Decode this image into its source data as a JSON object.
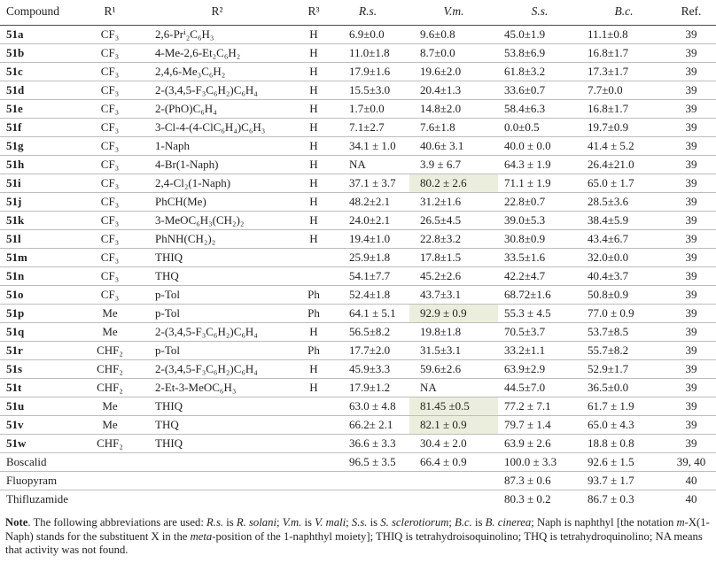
{
  "table": {
    "highlight_color": "#ebeedd",
    "columns": [
      {
        "key": "compound",
        "label": "Compound",
        "align": "left",
        "italic": false
      },
      {
        "key": "r1",
        "label": "R¹",
        "align": "center",
        "italic": false
      },
      {
        "key": "r2",
        "label": "R²",
        "align": "center",
        "italic": false
      },
      {
        "key": "r3",
        "label": "R³",
        "align": "center",
        "italic": false
      },
      {
        "key": "rs",
        "label": "R.s.",
        "align": "center",
        "italic": true
      },
      {
        "key": "vm",
        "label": "V.m.",
        "align": "center",
        "italic": true
      },
      {
        "key": "ss",
        "label": "S.s.",
        "align": "center",
        "italic": true
      },
      {
        "key": "bc",
        "label": "B.c.",
        "align": "center",
        "italic": true
      },
      {
        "key": "ref",
        "label": "Ref.",
        "align": "center",
        "italic": false
      }
    ],
    "rows": [
      {
        "bold": true,
        "highlight": [],
        "cells": {
          "compound": "51a",
          "r1": "CF₃",
          "r2": "2,6-Prⁱ₂C₆H₃",
          "r3": "H",
          "rs": "6.9±0.0",
          "vm": "9.6±0.8",
          "ss": "45.0±1.9",
          "bc": "11.1±0.8",
          "ref": "39"
        }
      },
      {
        "bold": true,
        "highlight": [],
        "cells": {
          "compound": "51b",
          "r1": "CF₃",
          "r2": "4-Me-2,6-Et₂C₆H₂",
          "r3": "H",
          "rs": "11.0±1.8",
          "vm": "8.7±0.0",
          "ss": "53.8±6.9",
          "bc": "16.8±1.7",
          "ref": "39"
        }
      },
      {
        "bold": true,
        "highlight": [],
        "cells": {
          "compound": "51c",
          "r1": "CF₃",
          "r2": "2,4,6-Me₃C₆H₂",
          "r3": "H",
          "rs": "17.9±1.6",
          "vm": "19.6±2.0",
          "ss": "61.8±3.2",
          "bc": "17.3±1.7",
          "ref": "39"
        }
      },
      {
        "bold": true,
        "highlight": [],
        "cells": {
          "compound": "51d",
          "r1": "CF₃",
          "r2": "2-(3,4,5-F₃C₆H₂)C₆H₄",
          "r3": "H",
          "rs": "15.5±3.0",
          "vm": "20.4±1.3",
          "ss": "33.6±0.7",
          "bc": "7.7±0.0",
          "ref": "39"
        }
      },
      {
        "bold": true,
        "highlight": [],
        "cells": {
          "compound": "51e",
          "r1": "CF₃",
          "r2": "2-(PhO)C₆H₄",
          "r3": "H",
          "rs": "1.7±0.0",
          "vm": "14.8±2.0",
          "ss": "58.4±6.3",
          "bc": "16.8±1.7",
          "ref": "39"
        }
      },
      {
        "bold": true,
        "highlight": [],
        "cells": {
          "compound": "51f",
          "r1": "CF₃",
          "r2": "3-Cl-4-(4-ClC₆H₄)C₆H₃",
          "r3": "H",
          "rs": "7.1±2.7",
          "vm": "7.6±1.8",
          "ss": "0.0±0.5",
          "bc": "19.7±0.9",
          "ref": "39"
        }
      },
      {
        "bold": true,
        "highlight": [],
        "cells": {
          "compound": "51g",
          "r1": "CF₃",
          "r2": "1-Naph",
          "r3": "H",
          "rs": "34.1 ± 1.0",
          "vm": "40.6± 3.1",
          "ss": "40.0 ± 0.0",
          "bc": "41.4 ± 5.2",
          "ref": "39"
        }
      },
      {
        "bold": true,
        "highlight": [],
        "cells": {
          "compound": "51h",
          "r1": "CF₃",
          "r2": "4-Br(1-Naph)",
          "r3": "H",
          "rs": "NA",
          "vm": "3.9 ± 6.7",
          "ss": "64.3 ± 1.9",
          "bc": "26.4±21.0",
          "ref": "39"
        }
      },
      {
        "bold": true,
        "highlight": [
          "vm"
        ],
        "cells": {
          "compound": "51i",
          "r1": "CF₃",
          "r2": "2,4-Cl₂(1-Naph)",
          "r3": "H",
          "rs": "37.1 ± 3.7",
          "vm": "80.2 ± 2.6",
          "ss": "71.1 ± 1.9",
          "bc": "65.0 ± 1.7",
          "ref": "39"
        }
      },
      {
        "bold": true,
        "highlight": [],
        "cells": {
          "compound": "51j",
          "r1": "CF₃",
          "r2": "PhCH(Me)",
          "r3": "H",
          "rs": "48.2±2.1",
          "vm": "31.2±1.6",
          "ss": "22.8±0.7",
          "bc": "28.5±3.6",
          "ref": "39"
        }
      },
      {
        "bold": true,
        "highlight": [],
        "cells": {
          "compound": "51k",
          "r1": "CF₃",
          "r2": "3-MeOC₆H₃(CH₂)₂",
          "r3": "H",
          "rs": "24.0±2.1",
          "vm": "26.5±4.5",
          "ss": "39.0±5.3",
          "bc": "38.4±5.9",
          "ref": "39"
        }
      },
      {
        "bold": true,
        "highlight": [],
        "cells": {
          "compound": "51l",
          "r1": "CF₃",
          "r2": "PhNH(CH₂)₂",
          "r3": "H",
          "rs": "19.4±1.0",
          "vm": "22.8±3.2",
          "ss": "30.8±0.9",
          "bc": "43.4±6.7",
          "ref": "39"
        }
      },
      {
        "bold": true,
        "highlight": [],
        "cells": {
          "compound": "51m",
          "r1": "CF₃",
          "r2": "THIQ",
          "r3": "",
          "rs": "25.9±1.8",
          "vm": "17.8±1.5",
          "ss": "33.5±1.6",
          "bc": "32.0±0.0",
          "ref": "39"
        }
      },
      {
        "bold": true,
        "highlight": [],
        "cells": {
          "compound": "51n",
          "r1": "CF₃",
          "r2": "THQ",
          "r3": "",
          "rs": "54.1±7.7",
          "vm": "45.2±2.6",
          "ss": "42.2±4.7",
          "bc": "40.4±3.7",
          "ref": "39"
        }
      },
      {
        "bold": true,
        "highlight": [],
        "cells": {
          "compound": "51o",
          "r1": "CF₃",
          "r2": "p-Tol",
          "r3": "Ph",
          "rs": "52.4±1.8",
          "vm": "43.7±3.1",
          "ss": "68.72±1.6",
          "bc": "50.8±0.9",
          "ref": "39"
        }
      },
      {
        "bold": true,
        "highlight": [
          "vm"
        ],
        "cells": {
          "compound": "51p",
          "r1": "Me",
          "r2": "p-Tol",
          "r3": "Ph",
          "rs": "64.1 ± 5.1",
          "vm": "92.9 ± 0.9",
          "ss": "55.3 ± 4.5",
          "bc": "77.0 ± 0.9",
          "ref": "39"
        }
      },
      {
        "bold": true,
        "highlight": [],
        "cells": {
          "compound": "51q",
          "r1": "Me",
          "r2": "2-(3,4,5-F₃C₆H₂)C₆H₄",
          "r3": "H",
          "rs": "56.5±8.2",
          "vm": "19.8±1.8",
          "ss": "70.5±3.7",
          "bc": "53.7±8.5",
          "ref": "39"
        }
      },
      {
        "bold": true,
        "highlight": [],
        "cells": {
          "compound": "51r",
          "r1": "CHF₂",
          "r2": "p-Tol",
          "r3": "Ph",
          "rs": "17.7±2.0",
          "vm": "31.5±3.1",
          "ss": "33.2±1.1",
          "bc": "55.7±8.2",
          "ref": "39"
        }
      },
      {
        "bold": true,
        "highlight": [],
        "cells": {
          "compound": "51s",
          "r1": "CHF₂",
          "r2": "2-(3,4,5-F₃C₆H₂)C₆H₄",
          "r3": "H",
          "rs": "45.9±3.3",
          "vm": "59.6±2.6",
          "ss": "63.9±2.9",
          "bc": "52.9±1.7",
          "ref": "39"
        }
      },
      {
        "bold": true,
        "highlight": [],
        "cells": {
          "compound": "51t",
          "r1": "CHF₂",
          "r2": "2-Et-3-MeOC₆H₃",
          "r3": "H",
          "rs": "17.9±1.2",
          "vm": "NA",
          "ss": "44.5±7.0",
          "bc": "36.5±0.0",
          "ref": "39"
        }
      },
      {
        "bold": true,
        "highlight": [
          "vm"
        ],
        "cells": {
          "compound": "51u",
          "r1": "Me",
          "r2": "THIQ",
          "r3": "",
          "rs": "63.0 ± 4.8",
          "vm": "81.45 ±0.5",
          "ss": "77.2 ± 7.1",
          "bc": "61.7 ± 1.9",
          "ref": "39"
        }
      },
      {
        "bold": true,
        "highlight": [
          "vm"
        ],
        "cells": {
          "compound": "51v",
          "r1": "Me",
          "r2": "THQ",
          "r3": "",
          "rs": "66.2± 2.1",
          "vm": "82.1 ± 0.9",
          "ss": "79.7 ± 1.4",
          "bc": "65.0 ± 4.3",
          "ref": "39"
        }
      },
      {
        "bold": true,
        "highlight": [],
        "cells": {
          "compound": "51w",
          "r1": "CHF₂",
          "r2": "THIQ",
          "r3": "",
          "rs": "36.6 ± 3.3",
          "vm": "30.4 ± 2.0",
          "ss": "63.9 ± 2.6",
          "bc": "18.8 ± 0.8",
          "ref": "39"
        }
      },
      {
        "bold": false,
        "highlight": [],
        "cells": {
          "compound": "Boscalid",
          "r1": "",
          "r2": "",
          "r3": "",
          "rs": "96.5 ± 3.5",
          "vm": "66.4 ± 0.9",
          "ss": "100.0 ± 3.3",
          "bc": "92.6 ± 1.5",
          "ref": "39, 40"
        }
      },
      {
        "bold": false,
        "highlight": [],
        "cells": {
          "compound": "Fluopyram",
          "r1": "",
          "r2": "",
          "r3": "",
          "rs": "",
          "vm": "",
          "ss": "87.3 ± 0.6",
          "bc": "93.7 ± 1.7",
          "ref": "40"
        }
      },
      {
        "bold": false,
        "highlight": [],
        "cells": {
          "compound": "Thifluzamide",
          "r1": "",
          "r2": "",
          "r3": "",
          "rs": "",
          "vm": "",
          "ss": "80.3 ± 0.2",
          "bc": "86.7 ± 0.3",
          "ref": "40"
        }
      }
    ]
  },
  "note": {
    "segments": [
      {
        "t": "Note",
        "b": true
      },
      {
        "t": ". The following abbreviations are used: "
      },
      {
        "t": "R.s.",
        "i": true
      },
      {
        "t": " is "
      },
      {
        "t": "R. solani",
        "i": true
      },
      {
        "t": "; "
      },
      {
        "t": "V.m.",
        "i": true
      },
      {
        "t": " is "
      },
      {
        "t": "V. mali",
        "i": true
      },
      {
        "t": "; "
      },
      {
        "t": "S.s.",
        "i": true
      },
      {
        "t": " is "
      },
      {
        "t": "S. sclerotiorum",
        "i": true
      },
      {
        "t": "; "
      },
      {
        "t": "B.c.",
        "i": true
      },
      {
        "t": " is "
      },
      {
        "t": "B. cinerea",
        "i": true
      },
      {
        "t": "; Naph is naphthyl [the notation "
      },
      {
        "t": "m",
        "i": true
      },
      {
        "t": "-X(1-Naph) stands for the substituent X in the "
      },
      {
        "t": "meta",
        "i": true
      },
      {
        "t": "-position of the 1-naphthyl moiety]; THIQ is  tetrahydroisoquinolino; THQ is tetrahydroquinolino; NA means that activity was not found."
      }
    ]
  }
}
